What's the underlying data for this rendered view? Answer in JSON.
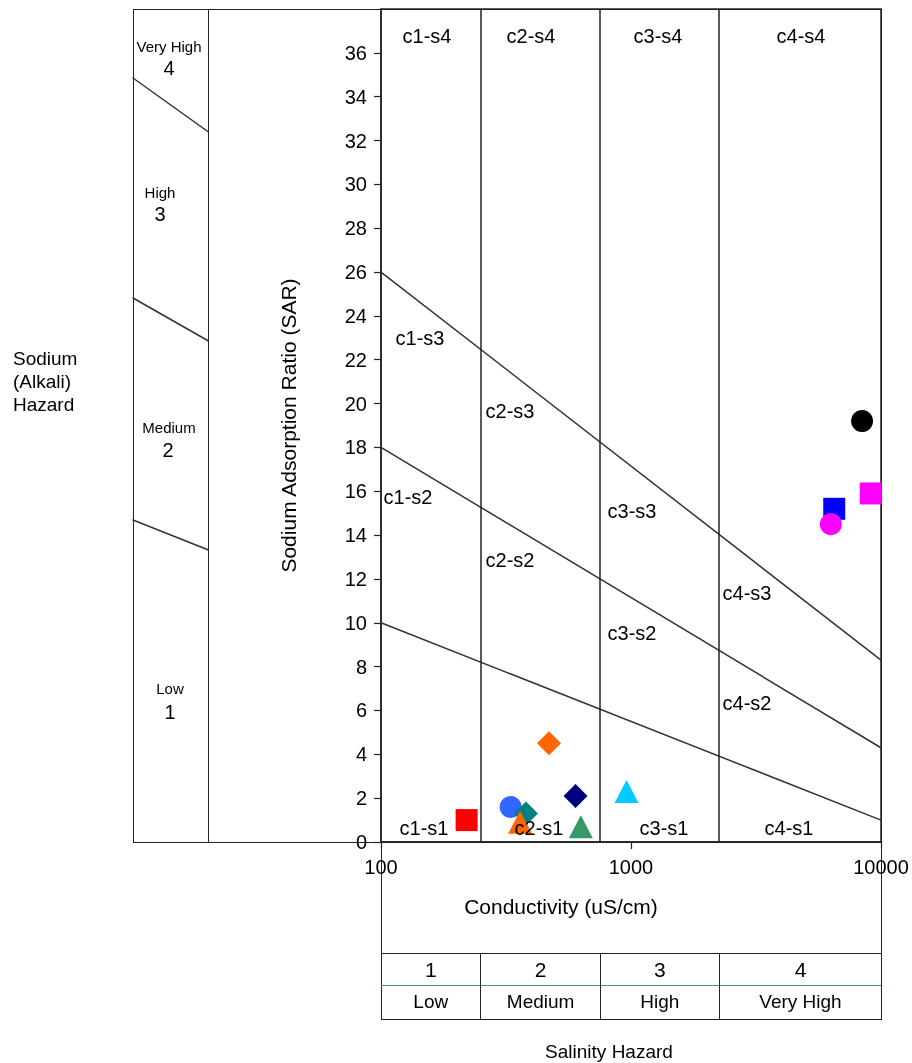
{
  "chart_data": [
    {
      "type": "other",
      "ylabel": "Sodium (Alkali) Hazard",
      "annotations": [
        "Very High",
        "4",
        "High",
        "3",
        "Medium",
        "2",
        "Low",
        "1"
      ]
    },
    {
      "type": "scatter",
      "xlabel": "Conductivity (uS/cm)",
      "ylabel": "Sodium Adsorption Ratio (SAR)",
      "log": "x",
      "xlim": [
        100,
        10000
      ],
      "xticks": [
        100,
        1000,
        10000
      ],
      "ylim": [
        0,
        38
      ],
      "yticks": [
        0,
        2,
        4,
        6,
        8,
        10,
        12,
        14,
        16,
        18,
        20,
        22,
        24,
        26,
        28,
        30,
        32,
        34,
        36
      ],
      "grid": false,
      "ref_lines": [
        {
          "axis": "x",
          "value": 250,
          "color": "#222222"
        },
        {
          "axis": "x",
          "value": 750,
          "color": "#222222"
        },
        {
          "axis": "x",
          "value": 2250,
          "color": "#222222"
        }
      ],
      "series": [
        {
          "type": "line",
          "marker": "none",
          "color": "#333333",
          "x": [
            100,
            10000
          ],
          "values": [
            10,
            1
          ]
        },
        {
          "type": "line",
          "marker": "none",
          "color": "#333333",
          "x": [
            100,
            10000
          ],
          "values": [
            18,
            4.3
          ]
        },
        {
          "type": "line",
          "marker": "none",
          "color": "#333333",
          "x": [
            100,
            10000
          ],
          "values": [
            26,
            8.3
          ]
        },
        {
          "marker": "square",
          "color": "#ff0000",
          "x": [
            220
          ],
          "values": [
            1.0
          ]
        },
        {
          "marker": "circle",
          "color": "#3366ff",
          "x": [
            330
          ],
          "values": [
            1.6
          ]
        },
        {
          "marker": "diamond",
          "color": "#008080",
          "x": [
            380
          ],
          "values": [
            1.3
          ]
        },
        {
          "marker": "triangle",
          "color": "#ff6600",
          "x": [
            360
          ],
          "values": [
            0.9
          ]
        },
        {
          "marker": "diamond",
          "color": "#ff6600",
          "x": [
            470
          ],
          "values": [
            4.5
          ]
        },
        {
          "marker": "diamond",
          "color": "#000080",
          "x": [
            600
          ],
          "values": [
            2.1
          ]
        },
        {
          "marker": "triangle",
          "color": "#339966",
          "x": [
            630
          ],
          "values": [
            0.7
          ]
        },
        {
          "marker": "triangle",
          "color": "#00ccff",
          "x": [
            960
          ],
          "values": [
            2.3
          ]
        },
        {
          "marker": "square",
          "color": "#0000ff",
          "x": [
            6500
          ],
          "values": [
            15.2
          ]
        },
        {
          "marker": "circle",
          "color": "#ff00ff",
          "x": [
            6300
          ],
          "values": [
            14.5
          ]
        },
        {
          "marker": "square",
          "color": "#ff00ff",
          "x": [
            9100
          ],
          "values": [
            15.9
          ]
        },
        {
          "marker": "circle",
          "color": "#000000",
          "x": [
            8400
          ],
          "values": [
            19.2
          ]
        }
      ],
      "annotations": [
        "c1-s4",
        "c2-s4",
        "c3-s4",
        "c4-s4",
        "c1-s3",
        "c2-s3",
        "c1-s2",
        "c2-s2",
        "c3-s3",
        "c3-s2",
        "c4-s3",
        "c4-s2",
        "c1-s1",
        "c2-s1",
        "c3-s1",
        "c4-s1"
      ]
    },
    {
      "type": "other",
      "title": "Salinity Hazard",
      "annotations": [
        "1",
        "2",
        "3",
        "4",
        "Low",
        "Medium",
        "High",
        "Very High"
      ]
    }
  ]
}
